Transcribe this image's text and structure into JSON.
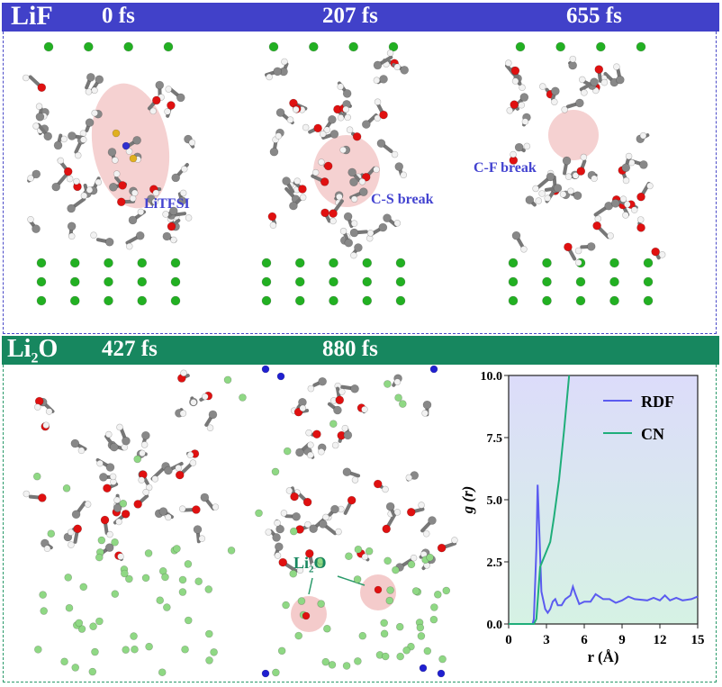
{
  "top_panel": {
    "title": "LiF",
    "times": [
      "0 fs",
      "207 fs",
      "655 fs"
    ],
    "annotations": [
      "LiTFSI",
      "C-S break",
      "C-F break"
    ],
    "color": "#4141c9"
  },
  "bottom_panel": {
    "title_main": "Li",
    "title_sub": "2",
    "title_end": "O",
    "times": [
      "427 fs",
      "880 fs"
    ],
    "annotation_main": "Li",
    "annotation_sub": "2",
    "annotation_end": "O",
    "color": "#17875f"
  },
  "chart_data": {
    "type": "line",
    "xlabel": "r (Å)",
    "ylabel": "g (r)",
    "xlim": [
      0,
      15
    ],
    "ylim": [
      0,
      10
    ],
    "xticks": [
      "0",
      "3",
      "6",
      "9",
      "12",
      "15"
    ],
    "yticks": [
      "0.0",
      "2.5",
      "5.0",
      "7.5",
      "10.0"
    ],
    "legend_position": "top-right",
    "series": [
      {
        "name": "RDF",
        "color": "#5b5bf0",
        "x": [
          0,
          1.9,
          2.0,
          2.2,
          2.3,
          2.45,
          2.6,
          2.9,
          3.1,
          3.3,
          3.5,
          3.7,
          3.9,
          4.2,
          4.5,
          4.9,
          5.1,
          5.3,
          5.6,
          6,
          6.5,
          6.9,
          7.5,
          8,
          8.5,
          9,
          9.5,
          10,
          11,
          11.5,
          12,
          12.4,
          12.8,
          13.3,
          13.8,
          14.5,
          15
        ],
        "y": [
          0,
          0,
          0.2,
          3,
          5.6,
          3.5,
          1.3,
          0.6,
          0.45,
          0.6,
          0.9,
          1.0,
          0.75,
          0.75,
          1.0,
          1.15,
          1.5,
          1.2,
          0.8,
          0.9,
          0.9,
          1.2,
          1.0,
          1.0,
          0.85,
          0.95,
          1.1,
          1.0,
          0.95,
          1.05,
          0.95,
          1.15,
          0.95,
          1.05,
          0.95,
          1.0,
          1.1
        ]
      },
      {
        "name": "CN",
        "color": "#1fae7a",
        "x": [
          0,
          2.0,
          2.2,
          2.5,
          2.9,
          3.3,
          3.6,
          4.0,
          4.4,
          4.8
        ],
        "y": [
          0,
          0,
          0.2,
          2.3,
          2.8,
          3.3,
          4.3,
          5.8,
          7.8,
          10
        ]
      }
    ]
  }
}
